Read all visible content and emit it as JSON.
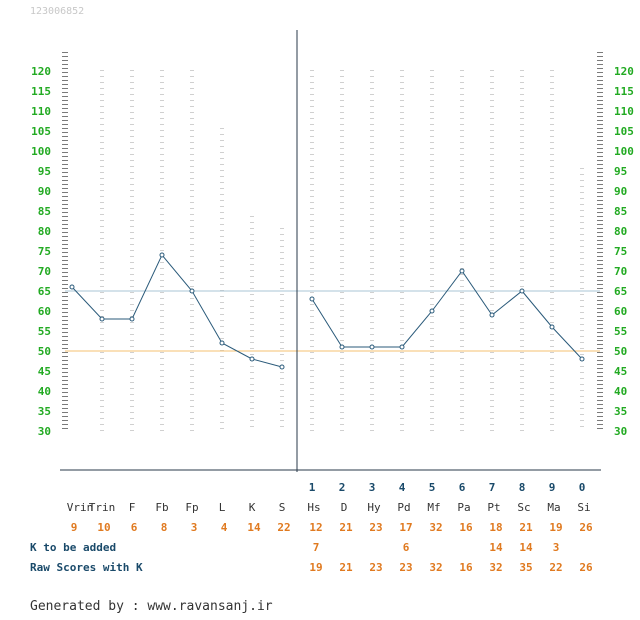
{
  "header": {
    "id_text": "123006852"
  },
  "footer": {
    "generated_by": "Generated by : www.ravansanj.ir"
  },
  "colors": {
    "tick_label": "#22aa22",
    "plot_line": "#2a5a7a",
    "label_dark": "#1a4a6a",
    "raw_score": "#e07a20",
    "ref_line_65": "#a8c4d4",
    "ref_line_50": "#f5c070",
    "id_text": "#c8c8c8"
  },
  "labels": {
    "k_to_be_added": "K to be added",
    "raw_scores_with_k": "Raw Scores with K"
  },
  "chart_data": {
    "type": "line",
    "y_ticks": [
      120,
      115,
      110,
      105,
      100,
      95,
      90,
      85,
      80,
      75,
      70,
      65,
      60,
      55,
      50,
      45,
      40,
      35,
      30
    ],
    "ylim": [
      30,
      120
    ],
    "reference_lines": [
      65,
      50
    ],
    "validity": {
      "scales": [
        "Vrin",
        "Trin",
        "F",
        "Fb",
        "Fp",
        "L",
        "K",
        "S"
      ],
      "t_scores": [
        66,
        58,
        58,
        74,
        65,
        52,
        48,
        46
      ],
      "raw_scores": [
        "9",
        "10",
        "6",
        "8",
        "3",
        "4",
        "14",
        "22"
      ]
    },
    "clinical": {
      "numbers": [
        "1",
        "2",
        "3",
        "4",
        "5",
        "6",
        "7",
        "8",
        "9",
        "0"
      ],
      "scales": [
        "Hs",
        "D",
        "Hy",
        "Pd",
        "Mf",
        "Pa",
        "Pt",
        "Sc",
        "Ma",
        "Si"
      ],
      "t_scores": [
        63,
        51,
        51,
        51,
        60,
        70,
        59,
        65,
        56,
        48
      ],
      "raw_scores": [
        "12",
        "21",
        "23",
        "17",
        "32",
        "16",
        "18",
        "21",
        "19",
        "26"
      ],
      "k_added": [
        "7",
        "",
        "",
        "6",
        "",
        "",
        "14",
        "14",
        "3",
        ""
      ],
      "raw_with_k": [
        "19",
        "21",
        "23",
        "23",
        "32",
        "16",
        "32",
        "35",
        "22",
        "26"
      ]
    }
  }
}
